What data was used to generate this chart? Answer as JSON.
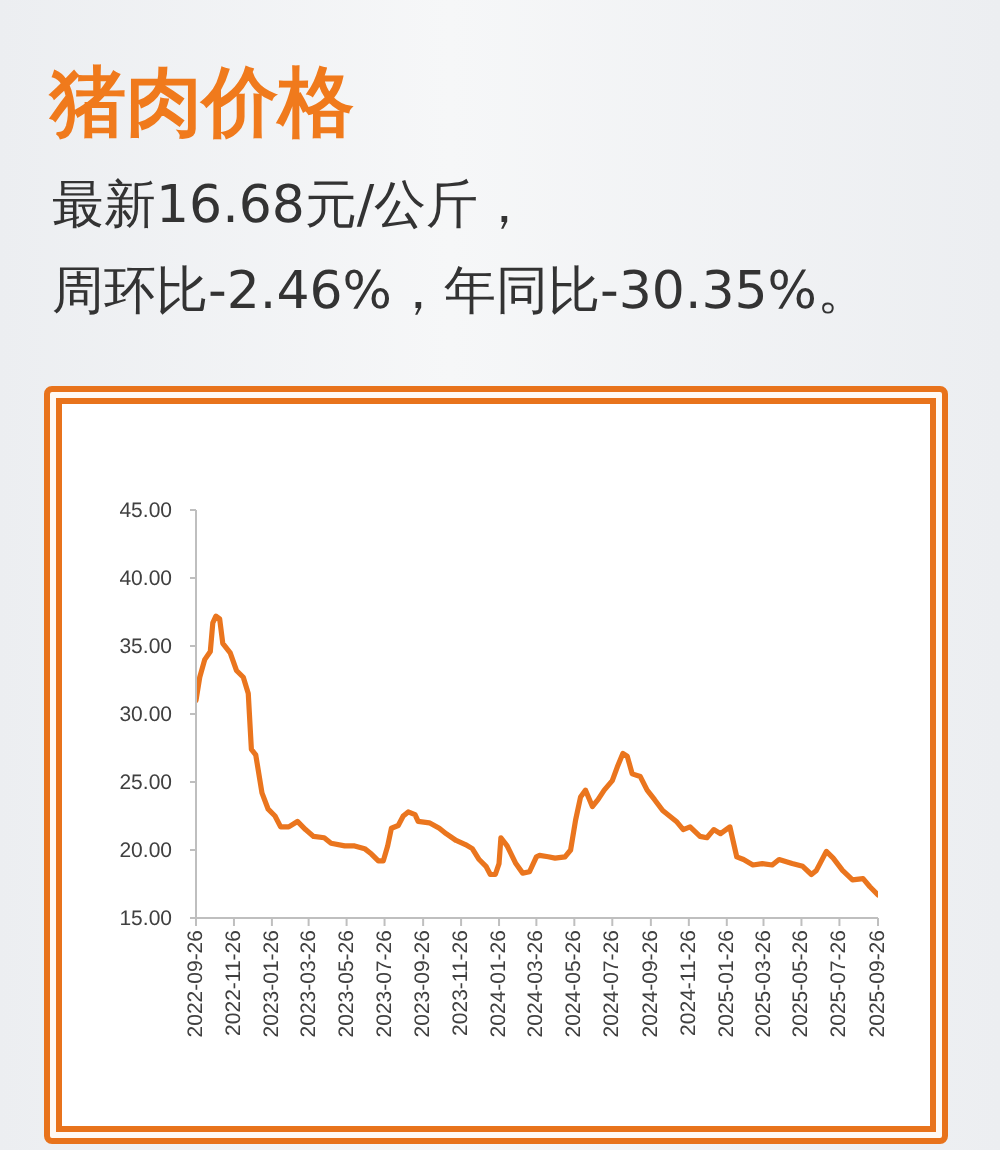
{
  "chart_data": {
    "type": "line",
    "title": "猪肉价格",
    "subtitle": "最新16.68元/公斤，周环比-2.46%，年同比-30.35%。",
    "x": [
      "2022-09-26",
      "2022-10-02",
      "2022-10-10",
      "2022-10-19",
      "2022-10-23",
      "2022-10-28",
      "2022-11-03",
      "2022-11-08",
      "2022-11-20",
      "2022-11-30",
      "2022-12-11",
      "2022-12-19",
      "2022-12-24",
      "2022-12-31",
      "2023-01-10",
      "2023-01-20",
      "2023-01-31",
      "2023-02-09",
      "2023-02-22",
      "2023-03-08",
      "2023-03-21",
      "2023-04-03",
      "2023-04-20",
      "2023-05-01",
      "2023-05-23",
      "2023-06-08",
      "2023-06-24",
      "2023-07-05",
      "2023-07-16",
      "2023-07-24",
      "2023-07-31",
      "2023-08-06",
      "2023-08-17",
      "2023-08-25",
      "2023-09-02",
      "2023-09-13",
      "2023-09-18",
      "2023-10-06",
      "2023-10-22",
      "2023-11-02",
      "2023-11-18",
      "2023-12-03",
      "2023-12-14",
      "2023-12-25",
      "2024-01-05",
      "2024-01-12",
      "2024-01-20",
      "2024-01-26",
      "2024-01-29",
      "2024-02-08",
      "2024-02-22",
      "2024-03-04",
      "2024-03-15",
      "2024-03-26",
      "2024-03-31",
      "2024-04-14",
      "2024-04-25",
      "2024-05-11",
      "2024-05-20",
      "2024-05-28",
      "2024-06-05",
      "2024-06-13",
      "2024-06-24",
      "2024-07-03",
      "2024-07-13",
      "2024-07-26",
      "2024-08-03",
      "2024-08-12",
      "2024-08-19",
      "2024-08-27",
      "2024-09-09",
      "2024-09-20",
      "2024-10-02",
      "2024-10-15",
      "2024-10-26",
      "2024-11-06",
      "2024-11-17",
      "2024-11-28",
      "2024-12-14",
      "2024-12-25",
      "2025-01-05",
      "2025-01-16",
      "2025-01-31",
      "2025-02-11",
      "2025-02-22",
      "2025-03-09",
      "2025-03-24",
      "2025-04-09",
      "2025-04-20",
      "2025-05-11",
      "2025-05-28",
      "2025-06-11",
      "2025-06-19",
      "2025-07-05",
      "2025-07-16",
      "2025-07-31",
      "2025-08-16",
      "2025-09-02",
      "2025-09-13",
      "2025-09-26"
    ],
    "series": [
      {
        "color": "#ea751e",
        "values": [
          31.0,
          32.7,
          34.0,
          34.6,
          36.7,
          37.2,
          37.0,
          35.2,
          34.5,
          33.2,
          32.7,
          31.5,
          27.4,
          27.0,
          24.2,
          23.0,
          22.5,
          21.7,
          21.7,
          22.1,
          21.5,
          21.0,
          20.9,
          20.5,
          20.3,
          20.3,
          20.1,
          19.7,
          19.2,
          19.2,
          20.3,
          21.6,
          21.8,
          22.5,
          22.8,
          22.6,
          22.1,
          22.0,
          21.6,
          21.2,
          20.7,
          20.4,
          20.1,
          19.3,
          18.8,
          18.2,
          18.2,
          19.0,
          20.9,
          20.3,
          19.0,
          18.3,
          18.4,
          19.5,
          19.6,
          19.5,
          19.4,
          19.5,
          20.0,
          22.2,
          23.9,
          24.4,
          23.2,
          23.7,
          24.4,
          25.1,
          26.1,
          27.1,
          26.9,
          25.6,
          25.4,
          24.4,
          23.7,
          22.9,
          22.5,
          22.1,
          21.5,
          21.7,
          21.0,
          20.9,
          21.5,
          21.2,
          21.7,
          19.5,
          19.3,
          18.9,
          19.0,
          18.9,
          19.3,
          19.0,
          18.8,
          18.2,
          18.5,
          19.9,
          19.4,
          18.5,
          17.8,
          17.9,
          17.3,
          16.7
        ]
      }
    ],
    "xlim": [
      "2022-09-26",
      "2025-09-26"
    ],
    "xticks": [
      "2022-09-26",
      "2022-11-26",
      "2023-01-26",
      "2023-03-26",
      "2023-05-26",
      "2023-07-26",
      "2023-09-26",
      "2023-11-26",
      "2024-01-26",
      "2024-03-26",
      "2024-05-26",
      "2024-07-26",
      "2024-09-26",
      "2024-11-26",
      "2025-01-26",
      "2025-03-26",
      "2025-05-26",
      "2025-07-26",
      "2025-09-26"
    ],
    "ylim": [
      15,
      45
    ],
    "yticks": [
      {
        "value": 15,
        "label": "15.00"
      },
      {
        "value": 20,
        "label": "20.00"
      },
      {
        "value": 25,
        "label": "25.00"
      },
      {
        "value": 30,
        "label": "30.00"
      },
      {
        "value": 35,
        "label": "35.00"
      },
      {
        "value": 40,
        "label": "40.00"
      },
      {
        "value": 45,
        "label": "45.00"
      }
    ],
    "marker": "none",
    "line_style": "solid"
  }
}
